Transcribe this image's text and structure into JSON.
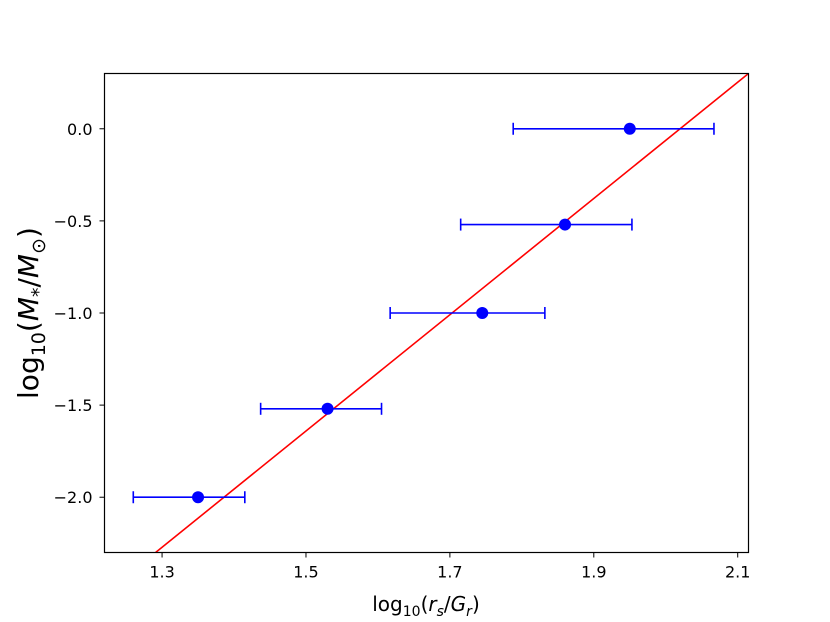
{
  "chart_data": {
    "type": "scatter",
    "xlabel": {
      "base": "log",
      "sub": "10",
      "open": "(",
      "var1": "r",
      "var1_sub": "s",
      "slash": "/",
      "var2": "G",
      "var2_sub": "r",
      "close": ")"
    },
    "ylabel": {
      "base": "log",
      "sub": "10",
      "open": "(",
      "var1": "M",
      "var1_sub": "*",
      "slash": "/",
      "var2": "M",
      "var2_sub": "⊙",
      "close": ")"
    },
    "xlim": [
      1.22,
      2.115
    ],
    "ylim": [
      -2.3,
      0.3
    ],
    "xticks": [
      {
        "value": 1.3,
        "label": "1.3"
      },
      {
        "value": 1.5,
        "label": "1.5"
      },
      {
        "value": 1.7,
        "label": "1.7"
      },
      {
        "value": 1.9,
        "label": "1.9"
      },
      {
        "value": 2.1,
        "label": "2.1"
      }
    ],
    "yticks": [
      {
        "value": 0.0,
        "label": "0.0"
      },
      {
        "value": -0.5,
        "label": "−0.5"
      },
      {
        "value": -1.0,
        "label": "−1.0"
      },
      {
        "value": -1.5,
        "label": "−1.5"
      },
      {
        "value": -2.0,
        "label": "−2.0"
      }
    ],
    "grid": false,
    "points": [
      {
        "x": 1.35,
        "y": -2.0,
        "xerr_low": 0.09,
        "xerr_high": 0.065
      },
      {
        "x": 1.53,
        "y": -1.52,
        "xerr_low": 0.093,
        "xerr_high": 0.075
      },
      {
        "x": 1.745,
        "y": -1.0,
        "xerr_low": 0.128,
        "xerr_high": 0.087
      },
      {
        "x": 1.86,
        "y": -0.52,
        "xerr_low": 0.145,
        "xerr_high": 0.093
      },
      {
        "x": 1.95,
        "y": 0.0,
        "xerr_low": 0.162,
        "xerr_high": 0.117
      }
    ],
    "fit_line": {
      "x": [
        1.291,
        2.115
      ],
      "y": [
        -2.3,
        0.3
      ]
    },
    "colors": {
      "points": "#0000ff",
      "fit_line": "#ff0000",
      "axes": "#000000"
    }
  }
}
